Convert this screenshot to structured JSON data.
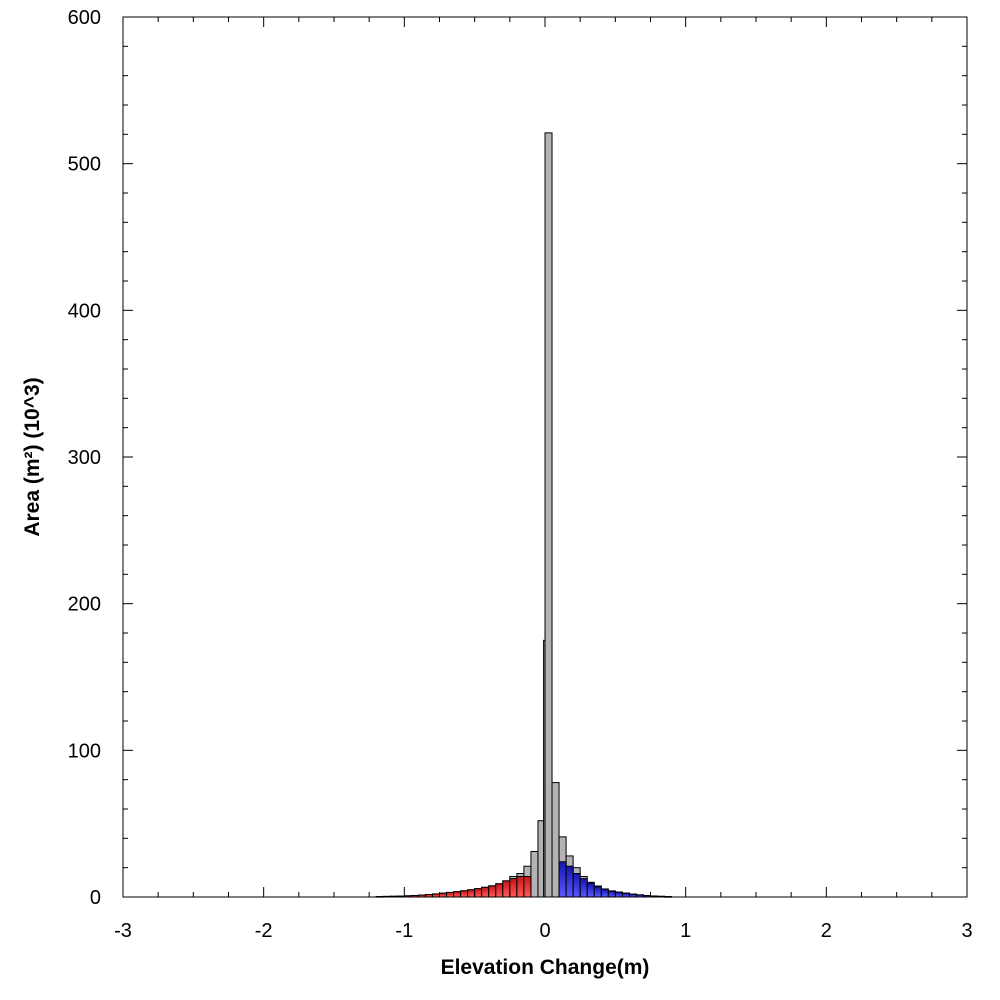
{
  "chart_data": {
    "type": "bar",
    "title": "",
    "xlabel": "Elevation Change(m)",
    "ylabel": "Area (m²) (10^3)",
    "xlim": [
      -3,
      3
    ],
    "ylim": [
      0,
      600
    ],
    "x_ticks": [
      -3,
      -2,
      -1,
      0,
      1,
      2,
      3
    ],
    "y_ticks": [
      0,
      100,
      200,
      300,
      400,
      500,
      600
    ],
    "x_minor_step": 0.25,
    "y_minor_step": 20,
    "grid": false,
    "bin_width": 0.05,
    "colors": {
      "total": "#b3b3b3",
      "erosion_dark": "#c81414",
      "erosion_light": "#ff5a5a",
      "deposition_dark": "#1414b4",
      "deposition_light": "#5a5aff",
      "outline": "#000000"
    },
    "series": [
      {
        "role": "total",
        "bins": [
          {
            "x0": -1.2,
            "value": 0.3
          },
          {
            "x0": -1.15,
            "value": 0.4
          },
          {
            "x0": -1.1,
            "value": 0.5
          },
          {
            "x0": -1.05,
            "value": 0.6
          },
          {
            "x0": -1.0,
            "value": 0.8
          },
          {
            "x0": -0.95,
            "value": 1.0
          },
          {
            "x0": -0.9,
            "value": 1.3
          },
          {
            "x0": -0.85,
            "value": 1.7
          },
          {
            "x0": -0.8,
            "value": 2.1
          },
          {
            "x0": -0.75,
            "value": 2.6
          },
          {
            "x0": -0.7,
            "value": 3.1
          },
          {
            "x0": -0.65,
            "value": 3.6
          },
          {
            "x0": -0.6,
            "value": 4.2
          },
          {
            "x0": -0.55,
            "value": 4.9
          },
          {
            "x0": -0.5,
            "value": 5.7
          },
          {
            "x0": -0.45,
            "value": 6.6
          },
          {
            "x0": -0.4,
            "value": 7.6
          },
          {
            "x0": -0.35,
            "value": 9.0
          },
          {
            "x0": -0.3,
            "value": 11.0
          },
          {
            "x0": -0.25,
            "value": 14.0
          },
          {
            "x0": -0.2,
            "value": 16.0
          },
          {
            "x0": -0.15,
            "value": 21.0
          },
          {
            "x0": -0.1,
            "value": 31.0
          },
          {
            "x0": -0.05,
            "value": 52.0
          },
          {
            "x0": -0.01,
            "value": 175.0,
            "width": 0.05
          },
          {
            "x0": 0.0,
            "value": 521.0,
            "width": 0.05
          },
          {
            "x0": 0.05,
            "value": 78.0
          },
          {
            "x0": 0.1,
            "value": 41.0
          },
          {
            "x0": 0.15,
            "value": 28.0
          },
          {
            "x0": 0.2,
            "value": 20.0
          },
          {
            "x0": 0.25,
            "value": 14.0
          },
          {
            "x0": 0.3,
            "value": 10.0
          },
          {
            "x0": 0.35,
            "value": 7.5
          },
          {
            "x0": 0.4,
            "value": 5.5
          },
          {
            "x0": 0.45,
            "value": 4.2
          },
          {
            "x0": 0.5,
            "value": 3.4
          },
          {
            "x0": 0.55,
            "value": 2.7
          },
          {
            "x0": 0.6,
            "value": 2.0
          },
          {
            "x0": 0.65,
            "value": 1.5
          },
          {
            "x0": 0.7,
            "value": 1.0
          },
          {
            "x0": 0.75,
            "value": 0.7
          },
          {
            "x0": 0.8,
            "value": 0.5
          },
          {
            "x0": 0.85,
            "value": 0.3
          }
        ]
      },
      {
        "role": "erosion",
        "bins": [
          {
            "x0": -1.2,
            "value": 0.3
          },
          {
            "x0": -1.15,
            "value": 0.4
          },
          {
            "x0": -1.1,
            "value": 0.5
          },
          {
            "x0": -1.05,
            "value": 0.6
          },
          {
            "x0": -1.0,
            "value": 0.8
          },
          {
            "x0": -0.95,
            "value": 1.0
          },
          {
            "x0": -0.9,
            "value": 1.3
          },
          {
            "x0": -0.85,
            "value": 1.7
          },
          {
            "x0": -0.8,
            "value": 2.1
          },
          {
            "x0": -0.75,
            "value": 2.6
          },
          {
            "x0": -0.7,
            "value": 3.1
          },
          {
            "x0": -0.65,
            "value": 3.6
          },
          {
            "x0": -0.6,
            "value": 4.2
          },
          {
            "x0": -0.55,
            "value": 4.9
          },
          {
            "x0": -0.5,
            "value": 5.7
          },
          {
            "x0": -0.45,
            "value": 6.6
          },
          {
            "x0": -0.4,
            "value": 7.6
          },
          {
            "x0": -0.35,
            "value": 9.0
          },
          {
            "x0": -0.3,
            "value": 11.0
          },
          {
            "x0": -0.25,
            "value": 12.5
          },
          {
            "x0": -0.2,
            "value": 14.0
          },
          {
            "x0": -0.15,
            "value": 14.0
          }
        ]
      },
      {
        "role": "deposition",
        "bins": [
          {
            "x0": 0.1,
            "value": 24.0
          },
          {
            "x0": 0.15,
            "value": 21.0
          },
          {
            "x0": 0.2,
            "value": 16.0
          },
          {
            "x0": 0.25,
            "value": 12.5
          },
          {
            "x0": 0.3,
            "value": 9.5
          },
          {
            "x0": 0.35,
            "value": 7.0
          },
          {
            "x0": 0.4,
            "value": 5.3
          },
          {
            "x0": 0.45,
            "value": 4.0
          },
          {
            "x0": 0.5,
            "value": 3.2
          },
          {
            "x0": 0.55,
            "value": 2.5
          },
          {
            "x0": 0.6,
            "value": 1.9
          },
          {
            "x0": 0.65,
            "value": 1.4
          },
          {
            "x0": 0.7,
            "value": 0.9
          },
          {
            "x0": 0.75,
            "value": 0.6
          },
          {
            "x0": 0.8,
            "value": 0.4
          },
          {
            "x0": 0.85,
            "value": 0.25
          }
        ]
      }
    ]
  }
}
